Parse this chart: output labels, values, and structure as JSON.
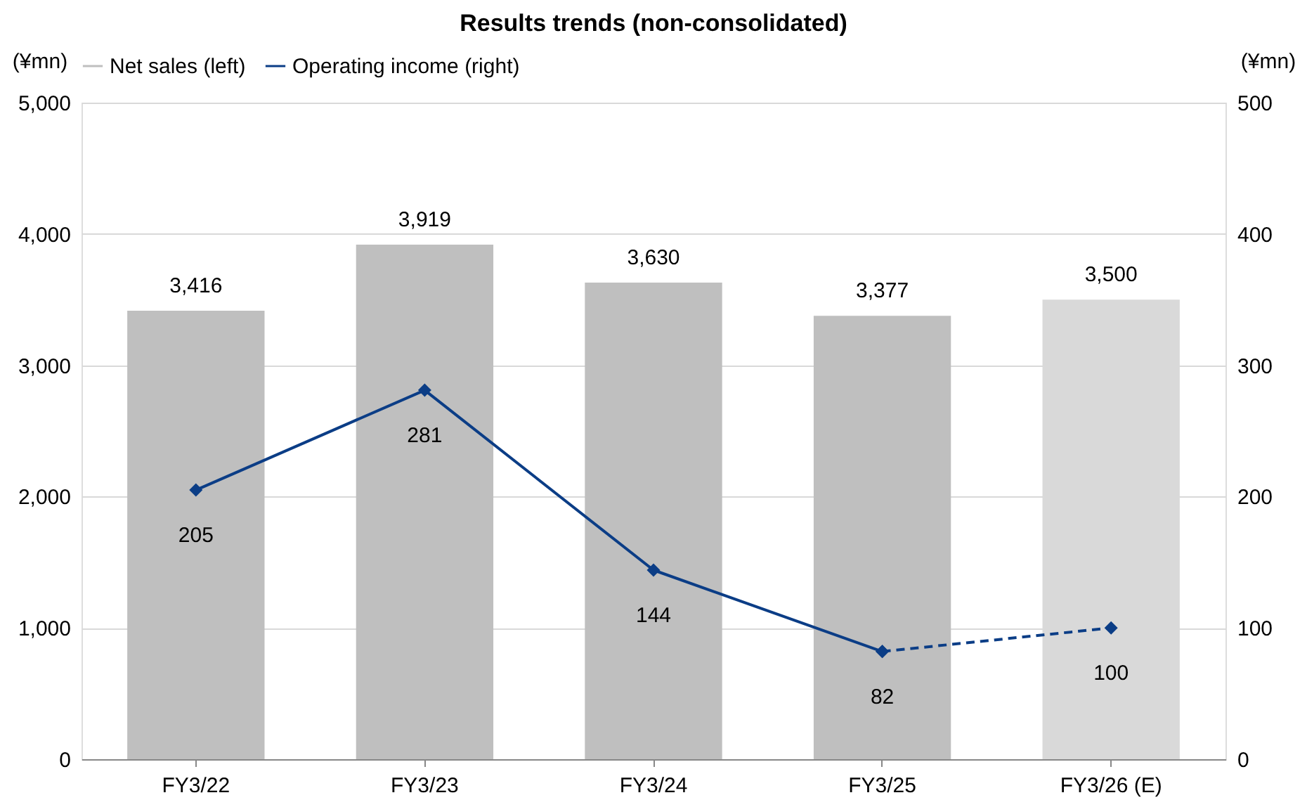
{
  "chart_data": {
    "type": "bar",
    "title": "Results trends (non-consolidated)",
    "categories": [
      "FY3/22",
      "FY3/23",
      "FY3/24",
      "FY3/25",
      "FY3/26 (E)"
    ],
    "ylabel": "(¥mn)",
    "y2label": "(¥mn)",
    "series": [
      {
        "name": "Net sales (left)",
        "type": "bar",
        "color": "#bfbfbf",
        "colors": [
          "#bfbfbf",
          "#bfbfbf",
          "#bfbfbf",
          "#bfbfbf",
          "#d9d9d9"
        ],
        "values": [
          3416,
          3919,
          3630,
          3377,
          3500
        ],
        "value_labels": [
          "3,416",
          "3,919",
          "3,630",
          "3,377",
          "3,500"
        ]
      },
      {
        "name": "Operating income (right)",
        "type": "line",
        "axis": "y2",
        "color": "#0b3d86",
        "marker": "diamond",
        "line_style": "solid",
        "values": [
          205,
          281,
          144,
          82,
          null
        ]
      },
      {
        "type": "line",
        "axis": "y2",
        "color": "#0b3d86",
        "marker": "diamond",
        "line_style": "dashed",
        "values": [
          null,
          null,
          null,
          82,
          100
        ],
        "value_labels": [
          null,
          null,
          null,
          null,
          "100"
        ]
      }
    ],
    "ylim": [
      0,
      5000
    ],
    "yticks": [
      0,
      {
        "value": 1000,
        "label": "1,000"
      },
      {
        "value": 2000,
        "label": "2,000"
      },
      {
        "value": 3000,
        "label": "3,000"
      },
      {
        "value": 4000,
        "label": "4,000"
      },
      {
        "value": 5000,
        "label": "5,000"
      }
    ],
    "y2lim": [
      0,
      500
    ],
    "y2ticks": [
      0,
      100,
      200,
      300,
      400,
      500
    ],
    "grid": "y",
    "legend": "top",
    "data_labels": true
  }
}
